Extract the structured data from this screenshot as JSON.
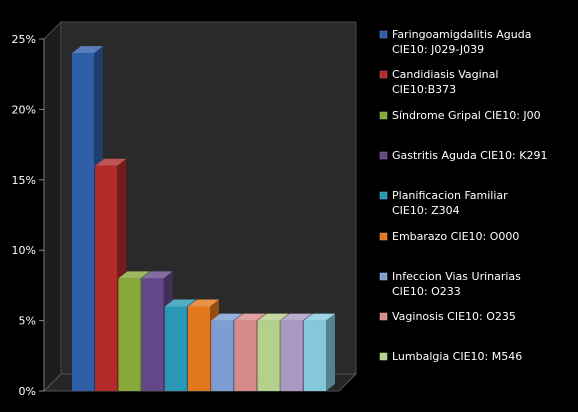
{
  "chart_data": {
    "type": "bar",
    "style": "3d-column",
    "ylim": [
      0,
      25
    ],
    "ytick_labels": [
      "0%",
      "5%",
      "10%",
      "15%",
      "20%",
      "25%"
    ],
    "unit": "%",
    "grid": false,
    "legend_position": "right",
    "series": [
      {
        "name": "Faringoamigdalitis Aguda CIE10: J029-J039",
        "value": 24,
        "color": "#2e5fa8"
      },
      {
        "name": "Candidiasis Vaginal CIE10:B373",
        "value": 16,
        "color": "#b22a2a"
      },
      {
        "name": "Síndrome Gripal CIE10: J00",
        "value": 8,
        "color": "#86a93a"
      },
      {
        "name": "Gastritis Aguda CIE10: K291",
        "value": 8,
        "color": "#644789"
      },
      {
        "name": "Planificacion Familiar CIE10: Z304",
        "value": 6,
        "color": "#2a98b5"
      },
      {
        "name": "Embarazo CIE10: O000",
        "value": 6,
        "color": "#e2771d"
      },
      {
        "name": "Infeccion Vias Urinarias CIE10: O233",
        "value": 5,
        "color": "#7e9ed3"
      },
      {
        "name": "Vaginosis CIE10: O235",
        "value": 5,
        "color": "#d78a8a"
      },
      {
        "name": "Lumbalgia CIE10: M546",
        "value": 5,
        "color": "#b4d08a"
      },
      {
        "name": "",
        "value": 5,
        "color": "#a898c2"
      },
      {
        "name": "",
        "value": 5,
        "color": "#85c8dc"
      }
    ]
  }
}
